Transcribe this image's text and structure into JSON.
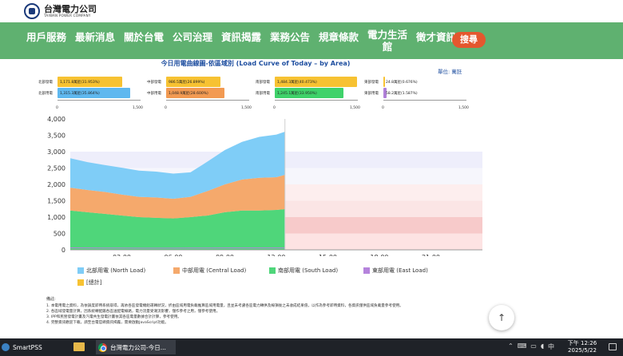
{
  "header": {
    "logo_cn": "台灣電力公司",
    "logo_en": "TAIWAN POWER COMPANY",
    "nav": [
      "用戶服務",
      "最新消息",
      "關於台電",
      "公司治理",
      "資訊揭露",
      "業務公告",
      "規章條款",
      "電力生活館",
      "徵才資訊"
    ],
    "search_label": "搜尋",
    "search_icon": "search-icon"
  },
  "chart_title": "今日用電曲線圖-依區域別 (Load Curve of Today – by Area)",
  "unit_label": "單位: 萬瓩",
  "mini_charts": [
    {
      "rows": [
        {
          "label": "北部發電",
          "value": "1,171.8萬瓩(31.953%)",
          "amount": 1171.8,
          "color": "#f7c232"
        },
        {
          "label": "北部用電",
          "value": "1,315.3萬瓩(35.864%)",
          "amount": 1315.3,
          "color": "#5fb8ef"
        }
      ],
      "axis": [
        "0",
        "1,500"
      ]
    },
    {
      "rows": [
        {
          "label": "中部發電",
          "value": "986.5萬瓩(26.899%)",
          "amount": 986.5,
          "color": "#f7c232"
        },
        {
          "label": "中部用電",
          "value": "1,048.9萬瓩(28.600%)",
          "amount": 1048.9,
          "color": "#f29a52"
        }
      ],
      "axis": [
        "0",
        "1,500"
      ]
    },
    {
      "rows": [
        {
          "label": "南部發電",
          "value": "1,484.3萬瓩(40.473%)",
          "amount": 1484.3,
          "color": "#f7c232"
        },
        {
          "label": "南部用電",
          "value": "1,245.1萬瓩(33.950%)",
          "amount": 1245.1,
          "color": "#3fd26a"
        }
      ],
      "axis": [
        "0",
        "1,500"
      ]
    },
    {
      "rows": [
        {
          "label": "東部發電",
          "value": "24.8萬瓩(0.676%)",
          "amount": 24.8,
          "color": "#f7c232"
        },
        {
          "label": "東部用電",
          "value": "58.2萬瓩(1.587%)",
          "amount": 58.2,
          "color": "#b07fd8"
        }
      ],
      "axis": [
        "0",
        "1,500"
      ]
    }
  ],
  "chart_data": {
    "type": "area",
    "stacked": true,
    "x_ticks": [
      "03:00",
      "06:00",
      "09:00",
      "12:00",
      "15:00",
      "18:00",
      "21:00"
    ],
    "x_range_hours": [
      0,
      24
    ],
    "ylim": [
      0,
      4000
    ],
    "y_ticks": [
      "0",
      "500",
      "1,000",
      "1,500",
      "2,000",
      "2,500",
      "3,000",
      "3,500",
      "4,000"
    ],
    "x_hours": [
      0,
      1,
      2,
      3,
      4,
      5,
      6,
      7,
      8,
      9,
      10,
      11,
      12,
      12.5
    ],
    "series": [
      {
        "name": "北部用電 (North Load)",
        "color": "#7fcdf7",
        "values": [
          900,
          850,
          820,
          820,
          800,
          790,
          770,
          750,
          900,
          1050,
          1150,
          1250,
          1300,
          1315
        ]
      },
      {
        "name": "中部用電 (Central Load)",
        "color": "#f5a96c",
        "values": [
          700,
          680,
          670,
          640,
          620,
          620,
          600,
          620,
          750,
          850,
          950,
          1000,
          1000,
          1049
        ]
      },
      {
        "name": "南部用電 (South Load)",
        "color": "#4fd67a",
        "values": [
          1200,
          1150,
          1100,
          1050,
          1000,
          980,
          960,
          1000,
          1050,
          1150,
          1200,
          1200,
          1220,
          1245
        ]
      },
      {
        "name": "東部用電 (East Load)",
        "color": "#b583dc",
        "values": [
          60,
          58,
          55,
          55,
          52,
          52,
          52,
          54,
          56,
          58,
          58,
          58,
          58,
          58
        ]
      }
    ],
    "total_series_name": "[總計]",
    "total_color": "#f7c232",
    "background_bands": [
      {
        "from": 0,
        "to": 500,
        "color": "#fde3e3"
      },
      {
        "from": 500,
        "to": 1000,
        "color": "#f7caca"
      },
      {
        "from": 1000,
        "to": 1500,
        "color": "#fbe5e5"
      },
      {
        "from": 1500,
        "to": 2000,
        "color": "#fdeeee"
      },
      {
        "from": 2000,
        "to": 2500,
        "color": "#f6f6fc"
      },
      {
        "from": 2500,
        "to": 3000,
        "color": "#eeeefb"
      },
      {
        "from": 3000,
        "to": 3500,
        "color": "#ffffff"
      },
      {
        "from": 3500,
        "to": 4000,
        "color": "#ffffff"
      }
    ]
  },
  "legend_total_label": "[總計]",
  "notes": {
    "title": "備註:",
    "items": [
      "1. 本電用電之資料，為依調度即時系統取得，再依各區發電機組運轉狀況，折由區域用電負載推算區域用電量，且並未考慮各區電力轉供及線損後之未收成結果值，以作為參考即時資料，各資訊僅供區域負載量參考使用。",
      "2. 各區域發電量計算，因系統轉配屬各區送配電線路，電力流量受潮流影響，僅作參考之用，僅參考使用。",
      "3. IPP和民營發電計畫及汽電共生發電計畫依其各區電量數據合計計算，參考使用。",
      "4. 完整資訊歡迎下載，請至台電官網資訊揭露，需要啟動JavaScript功能。"
    ]
  },
  "taskbar": {
    "app1": "SmartPSS",
    "chrome_tab": "台灣電力公司-今日...",
    "time": "下午 12:26",
    "date": "2025/5/22"
  }
}
